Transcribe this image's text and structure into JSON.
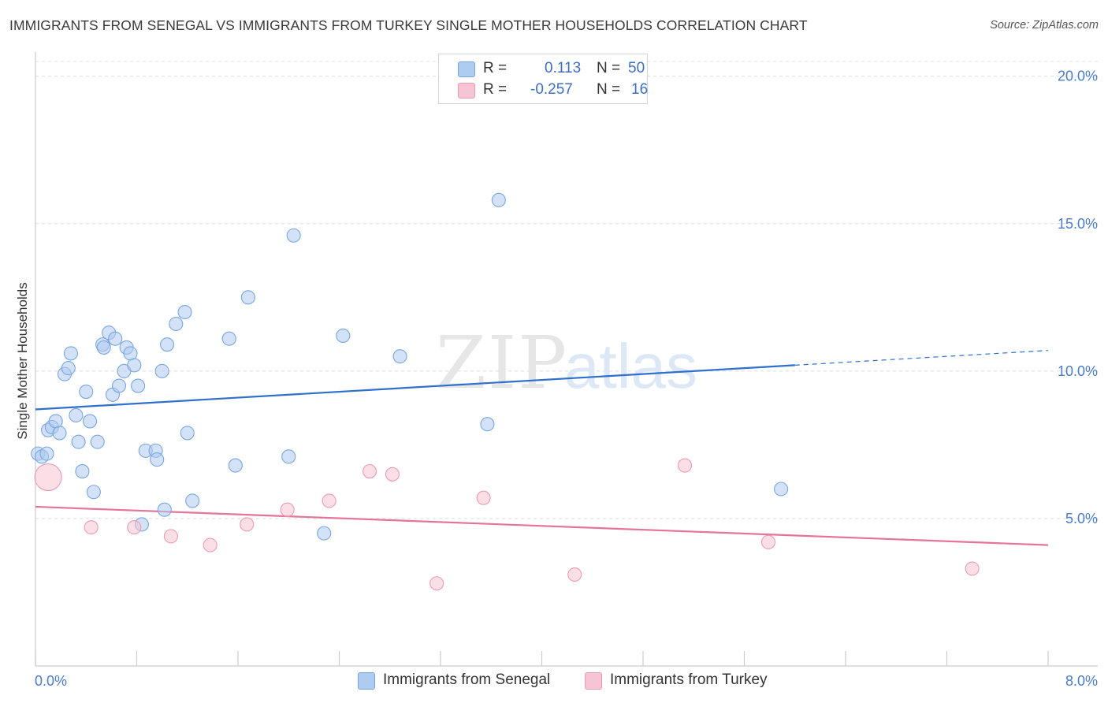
{
  "title": "IMMIGRANTS FROM SENEGAL VS IMMIGRANTS FROM TURKEY SINGLE MOTHER HOUSEHOLDS CORRELATION CHART",
  "source": "Source: ZipAtlas.com",
  "watermark": {
    "zip": "ZIP",
    "atlas": "atlas"
  },
  "legend": {
    "r_label": "R =",
    "n_label": "N =",
    "rows": [
      {
        "name": "senegal",
        "r": "0.113",
        "n": "50",
        "color": "#aecbf0",
        "border": "#7aa6e0"
      },
      {
        "name": "turkey",
        "r": "-0.257",
        "n": "16",
        "color": "#f6c4d4",
        "border": "#ec9ab5"
      }
    ]
  },
  "bottom_legend": {
    "senegal_label": "Immigrants from Senegal",
    "turkey_label": "Immigrants from Turkey"
  },
  "chart_data": {
    "type": "scatter",
    "title": "IMMIGRANTS FROM SENEGAL VS IMMIGRANTS FROM TURKEY SINGLE MOTHER HOUSEHOLDS CORRELATION CHART",
    "xlabel": "",
    "ylabel": "Single Mother Households",
    "xlim": [
      0.0,
      8.0
    ],
    "ylim": [
      0.0,
      20.5
    ],
    "x_tick_labels": [
      "0.0%",
      "8.0%"
    ],
    "y_ticks": [
      5.0,
      10.0,
      15.0,
      20.0
    ],
    "y_tick_labels": [
      "5.0%",
      "10.0%",
      "15.0%",
      "20.0%"
    ],
    "series": [
      {
        "name": "Immigrants from Senegal",
        "color": "#aecbf0",
        "edge": "#7aa6e0",
        "trend_color": "#2f6fcf",
        "trend": {
          "x0": 0.0,
          "y0": 8.7,
          "x1": 6.0,
          "y1": 10.2,
          "dash_to_x": 8.0,
          "dash_to_y": 10.7
        },
        "points": [
          [
            0.02,
            7.2
          ],
          [
            0.05,
            7.1
          ],
          [
            0.09,
            7.2
          ],
          [
            0.1,
            8.0
          ],
          [
            0.13,
            8.1
          ],
          [
            0.16,
            8.3
          ],
          [
            0.19,
            7.9
          ],
          [
            0.23,
            9.9
          ],
          [
            0.26,
            10.1
          ],
          [
            0.28,
            10.6
          ],
          [
            0.32,
            8.5
          ],
          [
            0.34,
            7.6
          ],
          [
            0.37,
            6.6
          ],
          [
            0.4,
            9.3
          ],
          [
            0.43,
            8.3
          ],
          [
            0.46,
            5.9
          ],
          [
            0.49,
            7.6
          ],
          [
            0.53,
            10.9
          ],
          [
            0.54,
            10.8
          ],
          [
            0.58,
            11.3
          ],
          [
            0.61,
            9.2
          ],
          [
            0.63,
            11.1
          ],
          [
            0.66,
            9.5
          ],
          [
            0.7,
            10.0
          ],
          [
            0.72,
            10.8
          ],
          [
            0.75,
            10.6
          ],
          [
            0.78,
            10.2
          ],
          [
            0.81,
            9.5
          ],
          [
            0.84,
            4.8
          ],
          [
            0.87,
            7.3
          ],
          [
            0.95,
            7.3
          ],
          [
            0.96,
            7.0
          ],
          [
            1.0,
            10.0
          ],
          [
            1.02,
            5.3
          ],
          [
            1.04,
            10.9
          ],
          [
            1.11,
            11.6
          ],
          [
            1.18,
            12.0
          ],
          [
            1.2,
            7.9
          ],
          [
            1.24,
            5.6
          ],
          [
            1.53,
            11.1
          ],
          [
            1.58,
            6.8
          ],
          [
            1.68,
            12.5
          ],
          [
            2.0,
            7.1
          ],
          [
            2.04,
            14.6
          ],
          [
            2.28,
            4.5
          ],
          [
            2.43,
            11.2
          ],
          [
            2.88,
            10.5
          ],
          [
            3.57,
            8.2
          ],
          [
            3.66,
            15.8
          ],
          [
            5.89,
            6.0
          ]
        ]
      },
      {
        "name": "Immigrants from Turkey",
        "color": "#f6c4d4",
        "edge": "#ec9ab5",
        "trend_color": "#e5739a",
        "trend": {
          "x0": 0.0,
          "y0": 5.4,
          "x1": 8.0,
          "y1": 4.1
        },
        "points": [
          [
            0.1,
            6.4
          ],
          [
            0.44,
            4.7
          ],
          [
            0.78,
            4.7
          ],
          [
            1.07,
            4.4
          ],
          [
            1.38,
            4.1
          ],
          [
            1.67,
            4.8
          ],
          [
            1.99,
            5.3
          ],
          [
            2.32,
            5.6
          ],
          [
            2.64,
            6.6
          ],
          [
            2.82,
            6.5
          ],
          [
            3.17,
            2.8
          ],
          [
            3.54,
            5.7
          ],
          [
            4.26,
            3.1
          ],
          [
            5.13,
            6.8
          ],
          [
            5.79,
            4.2
          ],
          [
            7.4,
            3.3
          ]
        ]
      }
    ]
  }
}
